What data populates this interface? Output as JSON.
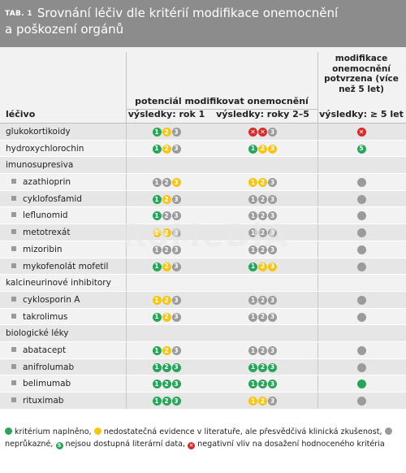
{
  "header": {
    "tab_label": "TAB. 1",
    "title_line1": "Srovnání léčiv dle kritérií modifikace onemocnění",
    "title_line2": "a poškození orgánů"
  },
  "columns": {
    "drug": "léčivo",
    "potential": "potenciál modifikovat onemocnění",
    "year1": "výsledky: rok 1",
    "years2_5": "výsledky: roky 2–5",
    "modification": "modifikace onemocnění potvrzena (více než 5 let)",
    "over5": "výsledky: ≥ 5 let"
  },
  "colors": {
    "green": "#2aa35b",
    "yellow": "#f5c518",
    "gray": "#9b9b9b",
    "red": "#d62b2b",
    "header_bg": "#8c8c8c"
  },
  "watermark": "RoMeDiA",
  "rows": [
    {
      "type": "drug",
      "name": "glukokortikoidy",
      "sub": false,
      "c1": [
        [
          "green",
          "1"
        ],
        [
          "yellow",
          "2"
        ],
        [
          "gray",
          "3"
        ]
      ],
      "c2": [
        [
          "red",
          "1"
        ],
        [
          "red",
          "2"
        ],
        [
          "gray",
          "3"
        ]
      ],
      "c3": [
        [
          "red",
          "5"
        ]
      ]
    },
    {
      "type": "drug",
      "name": "hydroxychlorochin",
      "sub": false,
      "c1": [
        [
          "green",
          "1"
        ],
        [
          "yellow",
          "2"
        ],
        [
          "gray",
          "3"
        ]
      ],
      "c2": [
        [
          "green",
          "1"
        ],
        [
          "yellow",
          "2"
        ],
        [
          "yellow",
          "3"
        ]
      ],
      "c3": [
        [
          "green",
          "5"
        ]
      ]
    },
    {
      "type": "group",
      "name": "imunosupresiva"
    },
    {
      "type": "drug",
      "name": "azathioprin",
      "sub": true,
      "c1": [
        [
          "gray",
          "1"
        ],
        [
          "gray",
          "2"
        ],
        [
          "yellow",
          "3"
        ]
      ],
      "c2": [
        [
          "yellow",
          "1"
        ],
        [
          "yellow",
          "2"
        ],
        [
          "gray",
          "3"
        ]
      ],
      "c3": [
        [
          "gray",
          ""
        ]
      ]
    },
    {
      "type": "drug",
      "name": "cyklofosfamid",
      "sub": true,
      "c1": [
        [
          "green",
          "1"
        ],
        [
          "yellow",
          "2"
        ],
        [
          "gray",
          "3"
        ]
      ],
      "c2": [
        [
          "gray",
          "1"
        ],
        [
          "gray",
          "2"
        ],
        [
          "gray",
          "3"
        ]
      ],
      "c3": [
        [
          "gray",
          ""
        ]
      ]
    },
    {
      "type": "drug",
      "name": "leflunomid",
      "sub": true,
      "c1": [
        [
          "green",
          "1"
        ],
        [
          "gray",
          "2"
        ],
        [
          "gray",
          "3"
        ]
      ],
      "c2": [
        [
          "gray",
          "1"
        ],
        [
          "gray",
          "2"
        ],
        [
          "gray",
          "3"
        ]
      ],
      "c3": [
        [
          "gray",
          ""
        ]
      ]
    },
    {
      "type": "drug",
      "name": "metotrexát",
      "sub": true,
      "c1": [
        [
          "yellow",
          "1"
        ],
        [
          "yellow",
          "2"
        ],
        [
          "gray",
          "3"
        ]
      ],
      "c2": [
        [
          "gray",
          "1"
        ],
        [
          "gray",
          "2"
        ],
        [
          "gray",
          "3"
        ]
      ],
      "c3": [
        [
          "gray",
          ""
        ]
      ]
    },
    {
      "type": "drug",
      "name": "mizoribin",
      "sub": true,
      "c1": [
        [
          "gray",
          "1"
        ],
        [
          "gray",
          "2"
        ],
        [
          "gray",
          "3"
        ]
      ],
      "c2": [
        [
          "gray",
          "1"
        ],
        [
          "gray",
          "2"
        ],
        [
          "gray",
          "3"
        ]
      ],
      "c3": [
        [
          "gray",
          ""
        ]
      ]
    },
    {
      "type": "drug",
      "name": "mykofenolát mofetil",
      "sub": true,
      "c1": [
        [
          "green",
          "1"
        ],
        [
          "yellow",
          "2"
        ],
        [
          "gray",
          "3"
        ]
      ],
      "c2": [
        [
          "green",
          "1"
        ],
        [
          "yellow",
          "2"
        ],
        [
          "yellow",
          "3"
        ]
      ],
      "c3": [
        [
          "gray",
          ""
        ]
      ]
    },
    {
      "type": "group",
      "name": "kalcineurinové inhibitory"
    },
    {
      "type": "drug",
      "name": "cyklosporin A",
      "sub": true,
      "c1": [
        [
          "yellow",
          "1"
        ],
        [
          "yellow",
          "2"
        ],
        [
          "gray",
          "3"
        ]
      ],
      "c2": [
        [
          "gray",
          "1"
        ],
        [
          "gray",
          "2"
        ],
        [
          "gray",
          "3"
        ]
      ],
      "c3": [
        [
          "gray",
          ""
        ]
      ]
    },
    {
      "type": "drug",
      "name": "takrolimus",
      "sub": true,
      "c1": [
        [
          "green",
          "1"
        ],
        [
          "yellow",
          "2"
        ],
        [
          "gray",
          "3"
        ]
      ],
      "c2": [
        [
          "gray",
          "1"
        ],
        [
          "gray",
          "2"
        ],
        [
          "gray",
          "3"
        ]
      ],
      "c3": [
        [
          "gray",
          ""
        ]
      ]
    },
    {
      "type": "group",
      "name": "biologické léky"
    },
    {
      "type": "drug",
      "name": "abatacept",
      "sub": true,
      "c1": [
        [
          "green",
          "1"
        ],
        [
          "yellow",
          "2"
        ],
        [
          "gray",
          "3"
        ]
      ],
      "c2": [
        [
          "gray",
          "1"
        ],
        [
          "gray",
          "2"
        ],
        [
          "gray",
          "3"
        ]
      ],
      "c3": [
        [
          "gray",
          ""
        ]
      ]
    },
    {
      "type": "drug",
      "name": "anifrolumab",
      "sub": true,
      "c1": [
        [
          "green",
          "1"
        ],
        [
          "green",
          "2"
        ],
        [
          "green",
          "3"
        ]
      ],
      "c2": [
        [
          "green",
          "1"
        ],
        [
          "green",
          "2"
        ],
        [
          "green",
          "3"
        ]
      ],
      "c3": [
        [
          "gray",
          ""
        ]
      ]
    },
    {
      "type": "drug",
      "name": "belimumab",
      "sub": true,
      "c1": [
        [
          "green",
          "1"
        ],
        [
          "green",
          "2"
        ],
        [
          "green",
          "3"
        ]
      ],
      "c2": [
        [
          "green",
          "1"
        ],
        [
          "green",
          "2"
        ],
        [
          "green",
          "3"
        ]
      ],
      "c3": [
        [
          "green",
          ""
        ]
      ]
    },
    {
      "type": "drug",
      "name": "rituximab",
      "sub": true,
      "c1": [
        [
          "green",
          "1"
        ],
        [
          "green",
          "2"
        ],
        [
          "green",
          "3"
        ]
      ],
      "c2": [
        [
          "yellow",
          "1"
        ],
        [
          "yellow",
          "2"
        ],
        [
          "gray",
          "3"
        ]
      ],
      "c3": [
        [
          "gray",
          ""
        ]
      ]
    }
  ],
  "legend": {
    "met": "kritérium naplněno,",
    "insufficient": "nedostatečná evidence v literatuře, ale přesvědčivá klinická zkušenost,",
    "inconclusive": "neprůkazné,",
    "available": "nejsou dostupná literární data,",
    "negative": "negativní vliv na dosažení hodnoceného kritéria",
    "available_glyph": "5"
  }
}
